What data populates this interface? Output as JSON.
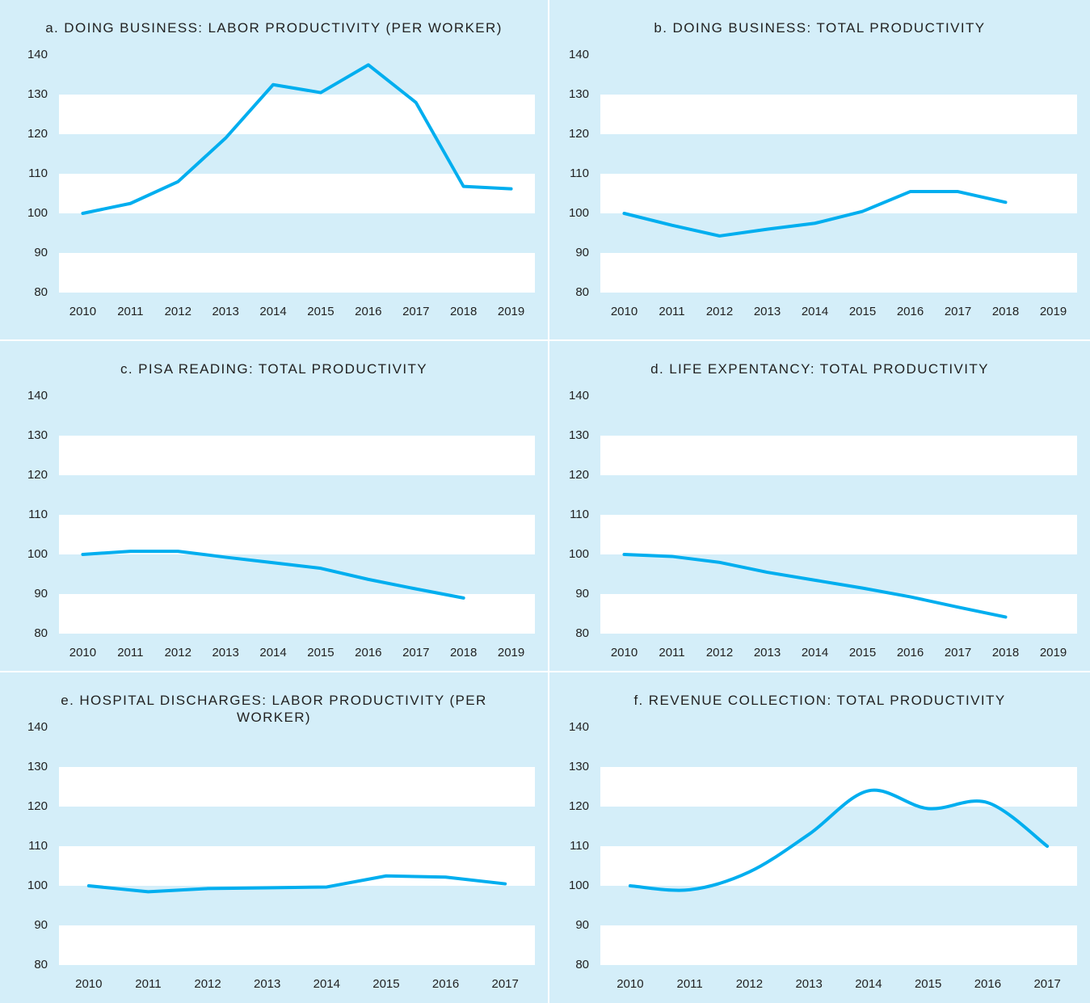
{
  "chart_data": [
    {
      "type": "line",
      "title": "a. DOING BUSINESS: LABOR PRODUCTIVITY (PER WORKER)",
      "categories": [
        "2010",
        "2011",
        "2012",
        "2013",
        "2014",
        "2015",
        "2016",
        "2017",
        "2018",
        "2019"
      ],
      "values": [
        100,
        102.5,
        108,
        119,
        132.5,
        130.5,
        137.5,
        128,
        106.8,
        106.2
      ],
      "color": "#00aeef",
      "ylim": [
        80,
        140
      ],
      "yticks": [
        80,
        90,
        100,
        110,
        120,
        130,
        140
      ]
    },
    {
      "type": "line",
      "title": "b. DOING BUSINESS: TOTAL PRODUCTIVITY",
      "categories": [
        "2010",
        "2011",
        "2012",
        "2013",
        "2014",
        "2015",
        "2016",
        "2017",
        "2018",
        "2019"
      ],
      "values": [
        100,
        97,
        94.3,
        96,
        97.5,
        100.5,
        105.5,
        105.5,
        102.8,
        null
      ],
      "color": "#00aeef",
      "ylim": [
        80,
        140
      ],
      "yticks": [
        80,
        90,
        100,
        110,
        120,
        130,
        140
      ]
    },
    {
      "type": "line",
      "title": "c. PISA READING: TOTAL PRODUCTIVITY",
      "categories": [
        "2010",
        "2011",
        "2012",
        "2013",
        "2014",
        "2015",
        "2016",
        "2017",
        "2018",
        "2019"
      ],
      "values": [
        100,
        100.8,
        100.8,
        99.3,
        97.9,
        96.5,
        93.7,
        91.3,
        89,
        null
      ],
      "color": "#00aeef",
      "ylim": [
        80,
        140
      ],
      "yticks": [
        80,
        90,
        100,
        110,
        120,
        130,
        140
      ]
    },
    {
      "type": "line",
      "title": "d. LIFE EXPENTANCY: TOTAL PRODUCTIVITY",
      "categories": [
        "2010",
        "2011",
        "2012",
        "2013",
        "2014",
        "2015",
        "2016",
        "2017",
        "2018",
        "2019"
      ],
      "values": [
        100,
        99.5,
        98,
        95.5,
        93.5,
        91.5,
        89.3,
        86.7,
        84.2,
        null
      ],
      "color": "#00aeef",
      "ylim": [
        80,
        140
      ],
      "yticks": [
        80,
        90,
        100,
        110,
        120,
        130,
        140
      ]
    },
    {
      "type": "line",
      "title": "e. HOSPITAL DISCHARGES: LABOR PRODUCTIVITY (PER WORKER)",
      "categories": [
        "2010",
        "2011",
        "2012",
        "2013",
        "2014",
        "2015",
        "2016",
        "2017"
      ],
      "values": [
        100,
        98.5,
        99.3,
        99.5,
        99.7,
        102.5,
        102.2,
        100.5
      ],
      "color": "#00aeef",
      "ylim": [
        80,
        140
      ],
      "yticks": [
        80,
        90,
        100,
        110,
        120,
        130,
        140
      ]
    },
    {
      "type": "line",
      "title": "f. REVENUE COLLECTION: TOTAL PRODUCTIVITY",
      "categories": [
        "2010",
        "2011",
        "2012",
        "2013",
        "2014",
        "2015",
        "2016",
        "2017"
      ],
      "values": [
        100,
        99,
        103.5,
        113,
        124,
        119.5,
        121,
        110
      ],
      "color": "#00aeef",
      "smooth": true,
      "ylim": [
        80,
        140
      ],
      "yticks": [
        80,
        90,
        100,
        110,
        120,
        130,
        140
      ]
    }
  ]
}
